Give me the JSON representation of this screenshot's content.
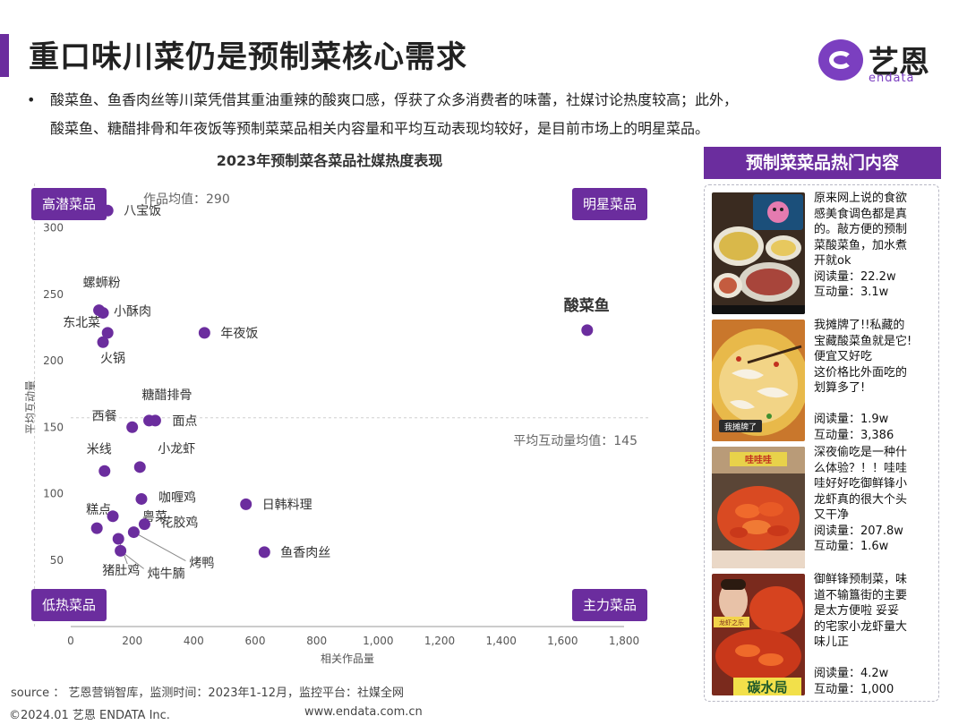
{
  "header": {
    "title": "重口味川菜仍是预制菜核心需求",
    "logo_cn": "艺恩",
    "logo_en": "endata"
  },
  "bullet": {
    "dot": "•",
    "text": "酸菜鱼、鱼香肉丝等川菜凭借其重油重辣的酸爽口感，俘获了众多消费者的味蕾，社媒讨论热度较高；此外，\n酸菜鱼、糖醋排骨和年夜饭等预制菜菜品相关内容量和平均互动表现均较好，是目前市场上的明星菜品。"
  },
  "chart_data": {
    "type": "scatter",
    "title": "2023年预制菜各菜品社媒热度表现",
    "xlabel": "相关作品量",
    "ylabel": "平均互动量",
    "xlim": [
      0,
      1800
    ],
    "ylim": [
      0,
      330
    ],
    "xticks": [
      0,
      200,
      400,
      600,
      800,
      1000,
      1200,
      1400,
      1600,
      1800
    ],
    "yticks": [
      50,
      100,
      150,
      200,
      250,
      300
    ],
    "x_tick_labels": [
      "0",
      "200",
      "400",
      "600",
      "800",
      "1,000",
      "1,200",
      "1,400",
      "1,600",
      "1,800"
    ],
    "y_tick_labels": [
      "50",
      "100",
      "150",
      "200",
      "250",
      "300"
    ],
    "x_mean": 290,
    "y_mean": 145,
    "x_mean_label": "作品均值：290",
    "y_mean_label": "平均互动量均值：145",
    "quadrants": {
      "top_left": "高潜菜品",
      "top_right": "明星菜品",
      "bottom_left": "低热菜品",
      "bottom_right": "主力菜品"
    },
    "marker_color": "#6b2d9e",
    "points": [
      {
        "name": "八宝饭",
        "x": 120,
        "y": 313
      },
      {
        "name": "螺蛳粉",
        "x": 92,
        "y": 238
      },
      {
        "name": "小酥肉",
        "x": 105,
        "y": 236
      },
      {
        "name": "东北菜",
        "x": 120,
        "y": 221
      },
      {
        "name": "火锅",
        "x": 105,
        "y": 214
      },
      {
        "name": "年夜饭",
        "x": 435,
        "y": 221
      },
      {
        "name": "酸菜鱼",
        "x": 1680,
        "y": 223
      },
      {
        "name": "糖醋排骨",
        "x": 255,
        "y": 155
      },
      {
        "name": "面点",
        "x": 275,
        "y": 155
      },
      {
        "name": "西餐",
        "x": 200,
        "y": 150
      },
      {
        "name": "小龙虾",
        "x": 225,
        "y": 120
      },
      {
        "name": "米线",
        "x": 110,
        "y": 117
      },
      {
        "name": "咖喱鸡",
        "x": 230,
        "y": 96
      },
      {
        "name": "日韩料理",
        "x": 570,
        "y": 92
      },
      {
        "name": "糕点",
        "x": 85,
        "y": 74
      },
      {
        "name": "粤菜",
        "x": 137,
        "y": 83
      },
      {
        "name": "花胶鸡",
        "x": 240,
        "y": 77
      },
      {
        "name": "烤鸭",
        "x": 205,
        "y": 71
      },
      {
        "name": "猪肚鸡",
        "x": 155,
        "y": 66
      },
      {
        "name": "炖牛腩",
        "x": 162,
        "y": 57
      },
      {
        "name": "鱼香肉丝",
        "x": 630,
        "y": 56
      }
    ]
  },
  "panel": {
    "header": "预制菜菜品热门内容",
    "posts": [
      {
        "text": "原来网上说的食欲\n感美食调色都是真\n的。敲方便的预制\n菜酸菜鱼，加水煮\n开就ok\n阅读量：22.2w\n互动量：3.1w"
      },
      {
        "text": "我摊牌了!!私藏的\n宝藏酸菜鱼就是它!\n便宜又好吃\n这价格比外面吃的\n划算多了!\n\n阅读量：1.9w\n互动量：3,386",
        "thumb_label": "我摊牌了"
      },
      {
        "text": "深夜偷吃是一种什\n么体验？！！哇哇\n哇好好吃御鲜锋小\n龙虾真的很大个头\n又干净\n阅读量：207.8w\n互动量：1.6w",
        "thumb_label": "哇哇哇"
      },
      {
        "text": "御鲜锋预制菜，味\n道不输簋街的主要\n是太方便啦   妥妥\n的宅家小龙虾量大\n    味儿正\n\n阅读量：4.2w\n互动量：1,000",
        "thumb_label": "碳水局",
        "thumb_small_label": "龙虾之乐"
      }
    ]
  },
  "footer": {
    "source": "source ：  艺恩营销智库，监测时间：2023年1-12月，监控平台：社媒全网",
    "copyright": "©2024.01  艺恩 ENDATA Inc.",
    "website": "www.endata.com.cn"
  }
}
